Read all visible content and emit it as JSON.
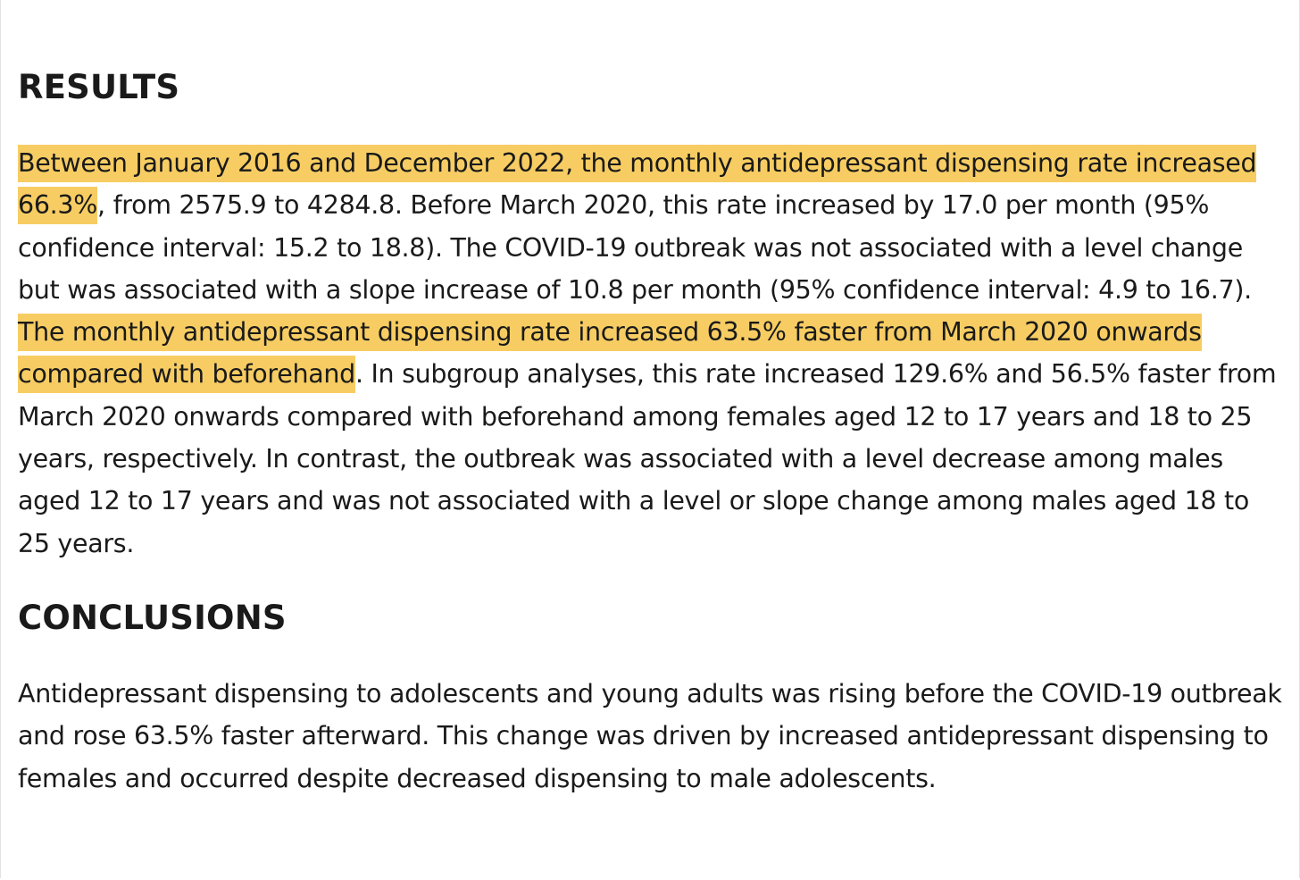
{
  "results": {
    "heading": "RESULTS",
    "segments": [
      {
        "text": "Between January 2016 and December 2022, the monthly antidepressant dispensing rate increased 66.3%",
        "highlighted": true
      },
      {
        "text": ", from 2575.9 to 4284.8. Before March 2020, this rate increased by 17.0 per month (95% confidence interval: 15.2 to 18.8). The COVID-19 outbreak was not associated with a level change but was associated with a slope increase of 10.8 per month (95% confidence interval: 4.9 to 16.7). ",
        "highlighted": false
      },
      {
        "text": "The monthly antidepressant dispensing rate increased 63.5% faster from March 2020 onwards compared with beforehand",
        "highlighted": true
      },
      {
        "text": ". In subgroup analyses, this rate increased 129.6% and 56.5% faster from March 2020 onwards compared with beforehand among females aged 12 to 17 years and 18 to 25 years, respectively. In contrast, the outbreak was associated with a level decrease among males aged 12 to 17 years and was not associated with a level or slope change among males aged 18 to 25 years.",
        "highlighted": false
      }
    ]
  },
  "conclusions": {
    "heading": "CONCLUSIONS",
    "text": "Antidepressant dispensing to adolescents and young adults was rising before the COVID-19 outbreak and rose 63.5% faster afterward. This change was driven by increased antidepressant dispensing to females and occurred despite decreased dispensing to male adolescents."
  },
  "colors": {
    "highlight": "#f7cd63",
    "text": "#1a1a1a",
    "background": "#ffffff"
  }
}
